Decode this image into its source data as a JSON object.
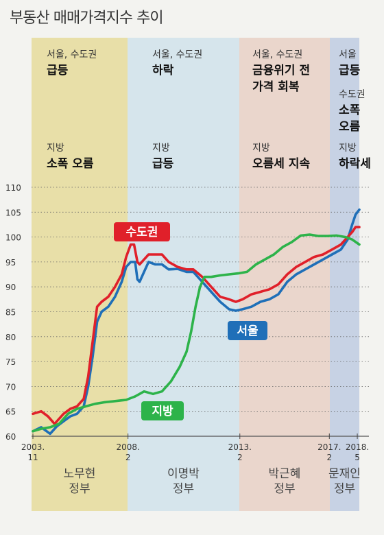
{
  "title": "부동산 매매가격지수 추이",
  "colors": {
    "seoul": "#1f6fb8",
    "capital": "#e0202a",
    "provinces": "#2db34a",
    "era_bg": [
      "#e8dfa8",
      "#d6e5ec",
      "#ead6cc",
      "#c7d2e4"
    ]
  },
  "eras": [
    {
      "government": "노무현\n정부",
      "notes": [
        [
          "서울, 수도권",
          "급등"
        ],
        [
          "지방",
          "소폭 오름"
        ]
      ]
    },
    {
      "government": "이명박\n정부",
      "notes": [
        [
          "서울, 수도권",
          "하락"
        ],
        [
          "지방",
          "급등"
        ]
      ]
    },
    {
      "government": "박근혜\n정부",
      "notes": [
        [
          "서울, 수도권",
          "금융위기 전\n가격 회복"
        ],
        [
          "지방",
          "오름세 지속"
        ]
      ]
    },
    {
      "government": "문재인\n정부",
      "notes": [
        [
          "서울",
          "급등"
        ],
        [
          "수도권",
          "소폭\n오름"
        ],
        [
          "지방",
          "하락세"
        ]
      ]
    }
  ],
  "chart_data": {
    "type": "line",
    "ylim": [
      60,
      110
    ],
    "yticks": [
      60,
      65,
      70,
      75,
      80,
      85,
      90,
      95,
      100,
      105,
      110
    ],
    "xlim": [
      2003.83,
      2018.42
    ],
    "xticks": [
      {
        "x": 2003.83,
        "label": "2003.\n11"
      },
      {
        "x": 2008.08,
        "label": "2008.\n2"
      },
      {
        "x": 2013.08,
        "label": "2013.\n2"
      },
      {
        "x": 2017.08,
        "label": "2017.\n2"
      },
      {
        "x": 2018.33,
        "label": "2018.\n5"
      }
    ],
    "grid": true,
    "series": [
      {
        "name": "서울",
        "color": "#1f6fb8",
        "points": [
          [
            2003.83,
            61
          ],
          [
            2004.2,
            61.8
          ],
          [
            2004.6,
            60.5
          ],
          [
            2004.9,
            62
          ],
          [
            2005.2,
            63
          ],
          [
            2005.5,
            64
          ],
          [
            2005.8,
            64.5
          ],
          [
            2006.1,
            66
          ],
          [
            2006.3,
            70
          ],
          [
            2006.5,
            76
          ],
          [
            2006.7,
            83
          ],
          [
            2006.9,
            85
          ],
          [
            2007.2,
            86
          ],
          [
            2007.5,
            88
          ],
          [
            2007.8,
            91
          ],
          [
            2008.0,
            94
          ],
          [
            2008.2,
            95
          ],
          [
            2008.4,
            95
          ],
          [
            2008.5,
            91.5
          ],
          [
            2008.6,
            91
          ],
          [
            2008.8,
            93
          ],
          [
            2009.0,
            95
          ],
          [
            2009.3,
            94.5
          ],
          [
            2009.6,
            94.5
          ],
          [
            2009.9,
            93.5
          ],
          [
            2010.3,
            93.6
          ],
          [
            2010.7,
            93
          ],
          [
            2011.0,
            93
          ],
          [
            2011.4,
            91
          ],
          [
            2011.8,
            89
          ],
          [
            2012.2,
            87
          ],
          [
            2012.6,
            85.5
          ],
          [
            2012.9,
            85.2
          ],
          [
            2013.2,
            85.5
          ],
          [
            2013.6,
            86
          ],
          [
            2014.0,
            87
          ],
          [
            2014.4,
            87.5
          ],
          [
            2014.8,
            88.5
          ],
          [
            2015.2,
            91
          ],
          [
            2015.6,
            92.5
          ],
          [
            2016.0,
            93.5
          ],
          [
            2016.4,
            94.5
          ],
          [
            2016.8,
            95.5
          ],
          [
            2017.2,
            96.5
          ],
          [
            2017.6,
            97.5
          ],
          [
            2017.9,
            99.5
          ],
          [
            2018.1,
            102.5
          ],
          [
            2018.25,
            104.5
          ],
          [
            2018.42,
            105.5
          ]
        ]
      },
      {
        "name": "수도권",
        "color": "#e0202a",
        "points": [
          [
            2003.83,
            64.5
          ],
          [
            2004.2,
            65
          ],
          [
            2004.5,
            64
          ],
          [
            2004.8,
            62.5
          ],
          [
            2005.2,
            64.5
          ],
          [
            2005.5,
            65.5
          ],
          [
            2005.8,
            66
          ],
          [
            2006.1,
            67.5
          ],
          [
            2006.3,
            72
          ],
          [
            2006.5,
            79
          ],
          [
            2006.7,
            86
          ],
          [
            2006.9,
            87
          ],
          [
            2007.2,
            88
          ],
          [
            2007.5,
            90
          ],
          [
            2007.8,
            92.5
          ],
          [
            2008.0,
            96
          ],
          [
            2008.2,
            98.5
          ],
          [
            2008.35,
            98.5
          ],
          [
            2008.5,
            95
          ],
          [
            2008.6,
            94.5
          ],
          [
            2008.8,
            95.5
          ],
          [
            2009.0,
            96.5
          ],
          [
            2009.3,
            96.5
          ],
          [
            2009.6,
            96.5
          ],
          [
            2009.9,
            95
          ],
          [
            2010.3,
            94
          ],
          [
            2010.7,
            93.5
          ],
          [
            2011.0,
            93.5
          ],
          [
            2011.4,
            92
          ],
          [
            2011.8,
            90
          ],
          [
            2012.2,
            88
          ],
          [
            2012.6,
            87.5
          ],
          [
            2012.9,
            87
          ],
          [
            2013.2,
            87.5
          ],
          [
            2013.6,
            88.5
          ],
          [
            2014.0,
            89
          ],
          [
            2014.4,
            89.5
          ],
          [
            2014.8,
            90.5
          ],
          [
            2015.2,
            92.5
          ],
          [
            2015.6,
            94
          ],
          [
            2016.0,
            95
          ],
          [
            2016.4,
            96
          ],
          [
            2016.8,
            96.5
          ],
          [
            2017.2,
            97.5
          ],
          [
            2017.6,
            98.5
          ],
          [
            2017.9,
            100
          ],
          [
            2018.1,
            101
          ],
          [
            2018.25,
            102
          ],
          [
            2018.42,
            102
          ]
        ]
      },
      {
        "name": "지방",
        "color": "#2db34a",
        "points": [
          [
            2003.83,
            61
          ],
          [
            2004.2,
            61.5
          ],
          [
            2004.6,
            61.8
          ],
          [
            2005.0,
            62.5
          ],
          [
            2005.4,
            64.5
          ],
          [
            2005.8,
            65.5
          ],
          [
            2006.2,
            66
          ],
          [
            2006.6,
            66.5
          ],
          [
            2007.0,
            66.8
          ],
          [
            2007.4,
            67
          ],
          [
            2007.8,
            67.2
          ],
          [
            2008.0,
            67.3
          ],
          [
            2008.4,
            68
          ],
          [
            2008.8,
            69
          ],
          [
            2009.2,
            68.5
          ],
          [
            2009.6,
            69
          ],
          [
            2010.0,
            71
          ],
          [
            2010.4,
            74
          ],
          [
            2010.7,
            77
          ],
          [
            2010.9,
            81
          ],
          [
            2011.1,
            86
          ],
          [
            2011.3,
            90
          ],
          [
            2011.5,
            92
          ],
          [
            2011.8,
            92
          ],
          [
            2012.2,
            92.3
          ],
          [
            2012.6,
            92.5
          ],
          [
            2013.0,
            92.7
          ],
          [
            2013.4,
            93
          ],
          [
            2013.8,
            94.5
          ],
          [
            2014.2,
            95.5
          ],
          [
            2014.6,
            96.5
          ],
          [
            2015.0,
            98
          ],
          [
            2015.4,
            99
          ],
          [
            2015.8,
            100.3
          ],
          [
            2016.2,
            100.5
          ],
          [
            2016.6,
            100.2
          ],
          [
            2017.0,
            100.2
          ],
          [
            2017.4,
            100.3
          ],
          [
            2017.8,
            100
          ],
          [
            2018.1,
            99.5
          ],
          [
            2018.42,
            98.5
          ]
        ]
      }
    ],
    "series_labels": [
      {
        "text": "수도권",
        "series": "수도권"
      },
      {
        "text": "서울",
        "series": "서울"
      },
      {
        "text": "지방",
        "series": "지방"
      }
    ]
  }
}
